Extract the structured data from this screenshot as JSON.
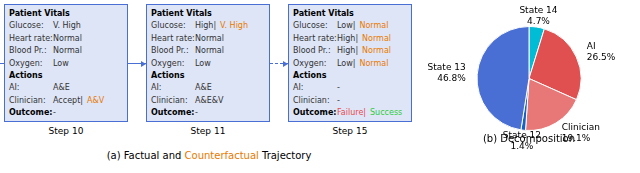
{
  "chart_data": {
    "type": "pie",
    "title": "(b) Decomposition",
    "categories": [
      "State 14",
      "AI",
      "Clinician",
      "State 12",
      "State 13"
    ],
    "values": [
      4.7,
      26.5,
      19.1,
      1.4,
      46.8
    ],
    "value_labels": [
      "4.7%",
      "26.5%",
      "19.1%",
      "1.4%",
      "46.8%"
    ],
    "colors": [
      "#00bcd4",
      "#e05050",
      "#e87878",
      "#1565c0",
      "#4a6fd4"
    ],
    "data_labels": true,
    "annotations": {
      "color": "#4a6fd4",
      "steps": [
        {
          "label": "Step 10",
          "rows": [
            [
              {
                "text": "Patient Vitals"
              }
            ],
            [
              {
                "text": "Glucose:"
              },
              {
                "text": "V. High"
              }
            ],
            [
              {
                "text": "Heart rate:"
              },
              {
                "text": "Normal"
              }
            ],
            [
              {
                "text": "Blood Pr.:"
              },
              {
                "text": "Normal"
              }
            ],
            [
              {
                "text": "Oxygen:"
              },
              {
                "text": "Low"
              }
            ],
            [
              {
                "text": "Actions"
              }
            ],
            [
              {
                "text": "AI:"
              },
              {
                "text": "A&E"
              }
            ],
            [
              {
                "text": "Clinician:"
              },
              {
                "text": "Accept|"
              },
              {
                "text": "A&V",
                "color": "#e87a00"
              }
            ],
            [
              {
                "text": "Outcome:"
              },
              {
                "text": "-"
              }
            ]
          ]
        },
        {
          "label": "Step 11",
          "rows": [
            [
              {
                "text": "Patient Vitals"
              }
            ],
            [
              {
                "text": "Glucose:"
              },
              {
                "text": "High|"
              },
              {
                "text": "V. High",
                "color": "#e87a00"
              }
            ],
            [
              {
                "text": "Heart rate:"
              },
              {
                "text": "Normal"
              }
            ],
            [
              {
                "text": "Blood Pr.:"
              },
              {
                "text": "Normal"
              }
            ],
            [
              {
                "text": "Oxygen:"
              },
              {
                "text": "Low"
              }
            ],
            [
              {
                "text": "Actions"
              }
            ],
            [
              {
                "text": "AI:"
              },
              {
                "text": "A&E"
              }
            ],
            [
              {
                "text": "Clinician:"
              },
              {
                "text": "A&E&V"
              }
            ],
            [
              {
                "text": "Outcome:"
              },
              {
                "text": "-"
              }
            ]
          ]
        },
        {
          "label": "Step 15",
          "rows": [
            [
              {
                "text": "Patient Vitals"
              }
            ],
            [
              {
                "text": "Glucose:"
              },
              {
                "text": "Low|"
              },
              {
                "text": "Normal",
                "color": "#e87a00"
              }
            ],
            [
              {
                "text": "Heart rate:"
              },
              {
                "text": "High|"
              },
              {
                "text": "Normal",
                "color": "#e87a00"
              }
            ],
            [
              {
                "text": "Blood Pr.:"
              },
              {
                "text": "High|"
              },
              {
                "text": "Normal",
                "color": "#e87a00"
              }
            ],
            [
              {
                "text": "Oxygen:"
              },
              {
                "text": "Low|"
              },
              {
                "text": "Normal",
                "color": "#e87a00"
              }
            ],
            [
              {
                "text": "Actions"
              }
            ],
            [
              {
                "text": "AI:"
              },
              {
                "text": "-"
              }
            ],
            [
              {
                "text": "Clinician:"
              },
              {
                "text": "-"
              }
            ],
            [
              {
                "text": "Outcome:"
              },
              {
                "text": "Failure|",
                "color": "#e84a4a"
              },
              {
                "text": "Success",
                "color": "#2ecc40"
              }
            ]
          ]
        }
      ],
      "caption": [
        {
          "text": "(a) Factual and "
        },
        {
          "text": "Counterfactual",
          "color": "#e87a00"
        },
        {
          "text": " Trajectory"
        }
      ]
    }
  }
}
